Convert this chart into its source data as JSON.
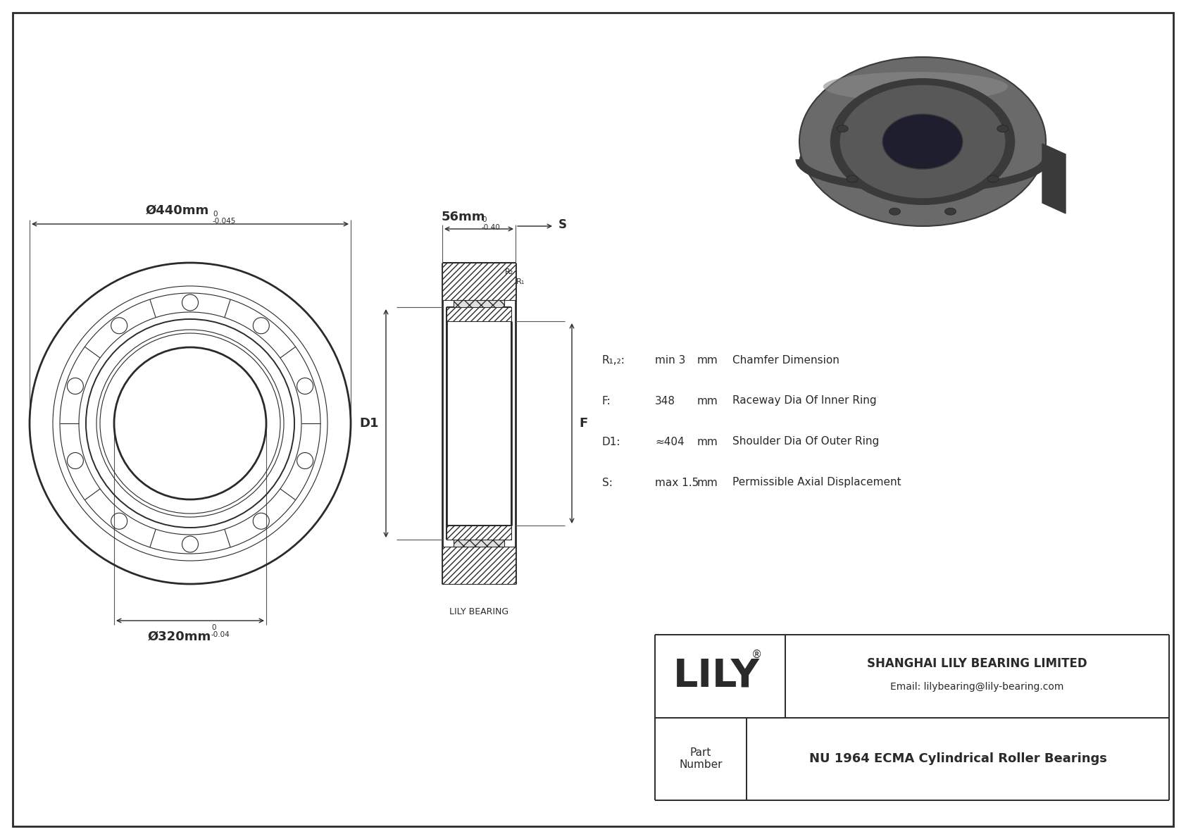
{
  "bg_color": "#ffffff",
  "line_color": "#2a2a2a",
  "outer_diameter_label": "Ø440mm",
  "outer_diameter_tol_upper": "0",
  "outer_diameter_tol_lower": "-0.045",
  "inner_diameter_label": "Ø320mm",
  "inner_diameter_tol_upper": "0",
  "inner_diameter_tol_lower": "-0.04",
  "width_label": "56mm",
  "width_tol_upper": "0",
  "width_tol_lower": "-0.40",
  "D1_label": "D1",
  "F_label": "F",
  "S_label": "S",
  "R1_label": "R₁",
  "R2_label": "R₂",
  "spec_R": "R₁,₂:",
  "spec_R_val": "min 3",
  "spec_R_unit": "mm",
  "spec_R_desc": "Chamfer Dimension",
  "spec_F": "F:",
  "spec_F_val": "348",
  "spec_F_unit": "mm",
  "spec_F_desc": "Raceway Dia Of Inner Ring",
  "spec_D1": "D1:",
  "spec_D1_val": "≈404",
  "spec_D1_unit": "mm",
  "spec_D1_desc": "Shoulder Dia Of Outer Ring",
  "spec_S": "S:",
  "spec_S_val": "max 1.5",
  "spec_S_unit": "mm",
  "spec_S_desc": "Permissible Axial Displacement",
  "lily_text": "LILY",
  "company_text": "SHANGHAI LILY BEARING LIMITED",
  "email_text": "Email: lilybearing@lily-bearing.com",
  "part_label": "Part\nNumber",
  "part_number": "NU 1964 ECMA Cylindrical Roller Bearings",
  "lily_bearing_label": "LILY BEARING"
}
